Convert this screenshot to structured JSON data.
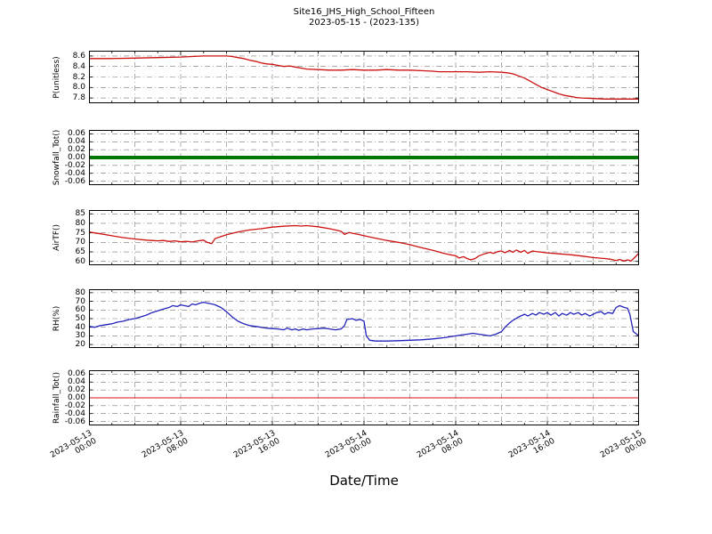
{
  "title": {
    "line1": "Site16_JHS_High_School_Fifteen",
    "line2": "2023-05-15 - (2023-135)"
  },
  "xlabel": "Date/Time",
  "x_axis": {
    "x_unit": "hours since 2023-05-13 00:00",
    "xlim": [
      0,
      48
    ],
    "major_step_hours": 8,
    "minor_step_hours": 2,
    "grid_step_hours": 4,
    "tick_labels": [
      [
        "2023-05-13",
        "00:00"
      ],
      [
        "2023-05-13",
        "08:00"
      ],
      [
        "2023-05-13",
        "16:00"
      ],
      [
        "2023-05-14",
        "00:00"
      ],
      [
        "2023-05-14",
        "08:00"
      ],
      [
        "2023-05-14",
        "16:00"
      ],
      [
        "2023-05-15",
        "00:00"
      ]
    ]
  },
  "chart_data": [
    {
      "type": "line",
      "ylabel": "P(unitless)",
      "ylim": [
        7.7,
        8.7
      ],
      "ytick_values": [
        7.8,
        8.0,
        8.2,
        8.4,
        8.6
      ],
      "ytick_labels": [
        "7.8",
        "8.0",
        "8.2",
        "8.4",
        "8.6"
      ],
      "series": [
        {
          "color": "#cc1111",
          "width": 1.3,
          "x": [
            0,
            2,
            4,
            6,
            8,
            9,
            10,
            11,
            12,
            12.5,
            13,
            13.5,
            14,
            14.5,
            15,
            15.5,
            16,
            16.5,
            17,
            17.5,
            18,
            18.5,
            19,
            20,
            21,
            22,
            23,
            24,
            25,
            26,
            27,
            28,
            29,
            30,
            30.5,
            31,
            32,
            33,
            34,
            35,
            36,
            36.5,
            37,
            37.5,
            38,
            38.5,
            39,
            39.5,
            40,
            40.5,
            41,
            41.5,
            42,
            42.5,
            43,
            44,
            45,
            46,
            47,
            48
          ],
          "y": [
            8.55,
            8.55,
            8.56,
            8.57,
            8.58,
            8.59,
            8.6,
            8.6,
            8.6,
            8.59,
            8.57,
            8.55,
            8.52,
            8.5,
            8.47,
            8.45,
            8.44,
            8.42,
            8.4,
            8.41,
            8.39,
            8.37,
            8.35,
            8.34,
            8.33,
            8.33,
            8.34,
            8.33,
            8.33,
            8.34,
            8.33,
            8.33,
            8.32,
            8.31,
            8.3,
            8.3,
            8.3,
            8.3,
            8.29,
            8.3,
            8.29,
            8.28,
            8.26,
            8.22,
            8.18,
            8.12,
            8.06,
            8.0,
            7.96,
            7.92,
            7.88,
            7.85,
            7.83,
            7.81,
            7.8,
            7.79,
            7.78,
            7.78,
            7.78,
            7.78
          ]
        }
      ]
    },
    {
      "type": "line",
      "ylabel": "Snowfall_Tot()",
      "ylim": [
        -0.07,
        0.07
      ],
      "ytick_values": [
        -0.06,
        -0.04,
        -0.02,
        0,
        0.02,
        0.04,
        0.06
      ],
      "ytick_labels": [
        "-0.06",
        "-0.04",
        "-0.02",
        "0.00",
        "0.02",
        "0.04",
        "0.06"
      ],
      "series": [
        {
          "color": "#007700",
          "width": 4,
          "x": [
            0,
            48
          ],
          "y": [
            0,
            0
          ]
        }
      ]
    },
    {
      "type": "line",
      "ylabel": "AirTF()",
      "ylim": [
        58,
        87
      ],
      "ytick_values": [
        60,
        65,
        70,
        75,
        80,
        85
      ],
      "ytick_labels": [
        "60",
        "65",
        "70",
        "75",
        "80",
        "85"
      ],
      "series": [
        {
          "color": "#cc1111",
          "width": 1.3,
          "x": [
            0,
            0.5,
            1,
            2,
            3,
            4,
            5,
            5.5,
            6,
            6.5,
            7,
            7.5,
            8,
            8.5,
            9,
            9.5,
            10,
            10.3,
            10.7,
            11,
            11.5,
            12,
            13,
            14,
            15,
            16,
            17,
            18,
            18.5,
            19,
            20,
            21,
            21.5,
            22,
            22.3,
            22.7,
            23,
            23.5,
            24,
            25,
            26,
            27,
            28,
            29,
            30,
            31,
            31.5,
            32,
            32.3,
            32.7,
            33,
            33.3,
            33.7,
            34,
            34.5,
            35,
            35.3,
            35.7,
            36,
            36.3,
            36.7,
            37,
            37.3,
            37.7,
            38,
            38.3,
            38.7,
            39,
            40,
            41,
            42,
            43,
            44,
            45,
            45.5,
            46,
            46.3,
            46.7,
            47,
            47.3,
            47.7,
            48
          ],
          "y": [
            75.5,
            75,
            74.5,
            73.5,
            72.5,
            71.8,
            71.2,
            71,
            70.8,
            71,
            70.5,
            70.8,
            70.3,
            70.6,
            70.2,
            70.8,
            71.2,
            70,
            69.3,
            72,
            73,
            74,
            75.5,
            76.5,
            77.2,
            78,
            78.5,
            78.8,
            78.6,
            78.8,
            78.2,
            77.2,
            76.5,
            75.8,
            74.2,
            75.2,
            74.8,
            74.2,
            73.5,
            72.2,
            71,
            70,
            68.8,
            67.2,
            65.8,
            64.2,
            63.5,
            63,
            61.8,
            62.5,
            61.5,
            60.8,
            61.5,
            62.8,
            64,
            64.8,
            64.2,
            65.2,
            65.5,
            64.5,
            65.8,
            64.8,
            66,
            64.8,
            65.8,
            64.2,
            65.5,
            65.2,
            64.5,
            64,
            63.5,
            62.8,
            62,
            61.5,
            61.2,
            60.5,
            61,
            60.3,
            60.8,
            60.2,
            62.5,
            64.5
          ]
        }
      ]
    },
    {
      "type": "line",
      "ylabel": "RH(%)",
      "ylim": [
        16,
        84
      ],
      "ytick_values": [
        20,
        30,
        40,
        50,
        60,
        70,
        80
      ],
      "ytick_labels": [
        "20",
        "30",
        "40",
        "50",
        "60",
        "70",
        "80"
      ],
      "series": [
        {
          "color": "#2222bb",
          "width": 1.3,
          "x": [
            0,
            0.5,
            1,
            1.5,
            2,
            2.5,
            3,
            3.5,
            4,
            4.5,
            5,
            5.5,
            6,
            6.5,
            7,
            7.3,
            7.7,
            8,
            8.3,
            8.7,
            9,
            9.3,
            9.7,
            10,
            10.3,
            10.7,
            11,
            11.5,
            12,
            12.5,
            13,
            13.5,
            14,
            14.5,
            15,
            15.5,
            16,
            16.5,
            17,
            17.3,
            17.7,
            18,
            18.3,
            18.7,
            19,
            19.5,
            20,
            20.5,
            21,
            21.5,
            22,
            22.3,
            22.5,
            23,
            23.3,
            23.7,
            24,
            24.2,
            24.5,
            25,
            26,
            27,
            28,
            29,
            30,
            31,
            32,
            32.5,
            33,
            33.5,
            34,
            34.5,
            35,
            35.5,
            36,
            36.3,
            36.7,
            37,
            37.5,
            38,
            38.3,
            38.7,
            39,
            39.3,
            39.7,
            40,
            40.3,
            40.7,
            41,
            41.3,
            41.7,
            42,
            42.3,
            42.7,
            43,
            43.3,
            43.7,
            44,
            44.3,
            44.7,
            45,
            45.3,
            45.7,
            46,
            46.3,
            46.7,
            47,
            47.2,
            47.5,
            48
          ],
          "y": [
            41,
            40,
            42,
            43,
            44,
            46,
            47,
            49,
            50,
            52,
            54,
            57,
            59,
            61,
            63,
            65,
            64,
            66,
            65,
            64,
            67,
            66,
            68,
            69,
            68,
            67,
            66,
            63,
            58,
            52,
            47,
            44,
            42,
            41,
            40,
            39,
            38.5,
            38,
            37,
            39,
            37,
            38,
            36.5,
            38,
            37,
            38,
            38.5,
            39,
            38,
            37,
            38,
            42,
            49,
            50,
            48,
            49,
            47,
            30,
            25,
            24,
            24,
            24.5,
            25,
            25.5,
            26.5,
            28,
            30,
            31,
            32,
            33,
            32,
            31,
            30,
            32,
            35,
            40,
            45,
            48,
            52,
            55,
            53,
            56,
            54,
            57,
            55,
            57,
            54,
            57,
            53,
            56,
            54,
            57,
            55,
            57,
            54,
            56,
            53,
            55,
            57,
            58,
            55,
            57,
            56,
            63,
            65,
            63,
            62,
            55,
            35,
            30
          ]
        }
      ]
    },
    {
      "type": "line",
      "ylabel": "Rainfall_Tot()",
      "ylim": [
        -0.07,
        0.07
      ],
      "ytick_values": [
        -0.06,
        -0.04,
        -0.02,
        0,
        0.02,
        0.04,
        0.06
      ],
      "ytick_labels": [
        "-0.06",
        "-0.04",
        "-0.02",
        "0.00",
        "0.02",
        "0.04",
        "0.06"
      ],
      "series": [
        {
          "color": "#dd1111",
          "width": 1.1,
          "x": [
            0,
            48
          ],
          "y": [
            0,
            0
          ]
        }
      ]
    }
  ]
}
